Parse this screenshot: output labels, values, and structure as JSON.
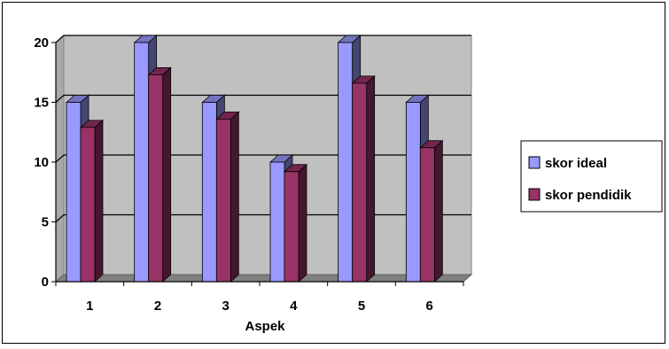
{
  "chart_data": {
    "type": "bar",
    "categories": [
      "1",
      "2",
      "3",
      "4",
      "5",
      "6"
    ],
    "series": [
      {
        "name": "skor ideal",
        "values": [
          15,
          20,
          15,
          10,
          20,
          15
        ],
        "color": "#9999ff"
      },
      {
        "name": "skor pendidik",
        "values": [
          12.9,
          17.3,
          13.6,
          9.2,
          16.6,
          11.2
        ],
        "color": "#993366"
      }
    ],
    "xlabel": "Aspek",
    "ylabel": "",
    "ylim": [
      0,
      20
    ],
    "yticks": [
      "0",
      "5",
      "10",
      "15",
      "20"
    ],
    "grid": true,
    "legend": "right",
    "wall_color": "#c0c0c0",
    "three_d": true
  }
}
